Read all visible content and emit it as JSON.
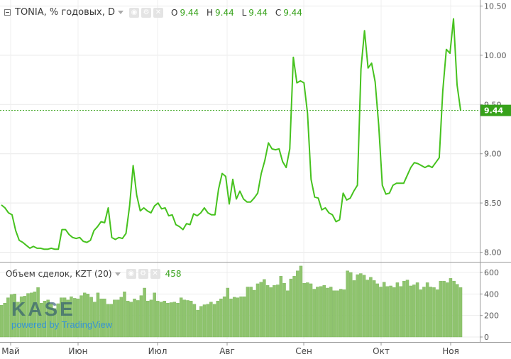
{
  "header": {
    "symbol": "TONIA, % годовых, D",
    "o_label": "O",
    "o": "9.44",
    "h_label": "H",
    "h": "9.44",
    "l_label": "L",
    "l": "9.44",
    "c_label": "C",
    "c": "9.44"
  },
  "volume_header": {
    "label": "Объем сделок, KZT (20)",
    "value": "458"
  },
  "watermark": {
    "brand": "KASE",
    "powered": "powered by TradingView"
  },
  "last_price_label": "9.44",
  "colors": {
    "line": "#46c21e",
    "volume": "#8fc46e",
    "label_bg": "#37a21b"
  },
  "chart_data": [
    {
      "type": "line",
      "name": "TONIA",
      "x_ticks": [
        "Май",
        "Июн",
        "Июл",
        "Авг",
        "Сен",
        "Окт",
        "Ноя"
      ],
      "y_ticks": [
        "8.00",
        "8.50",
        "9.00",
        "9.50",
        "10.00",
        "10.50"
      ],
      "ylim": [
        7.9,
        10.52
      ],
      "last_value": 9.44,
      "values": [
        8.48,
        8.45,
        8.4,
        8.38,
        8.22,
        8.12,
        8.1,
        8.07,
        8.04,
        8.06,
        8.04,
        8.04,
        8.03,
        8.03,
        8.04,
        8.03,
        8.03,
        8.23,
        8.23,
        8.18,
        8.15,
        8.14,
        8.15,
        8.11,
        8.1,
        8.12,
        8.22,
        8.26,
        8.31,
        8.3,
        8.45,
        8.15,
        8.13,
        8.15,
        8.14,
        8.19,
        8.47,
        8.88,
        8.58,
        8.42,
        8.45,
        8.42,
        8.4,
        8.47,
        8.5,
        8.44,
        8.45,
        8.37,
        8.38,
        8.28,
        8.26,
        8.23,
        8.29,
        8.28,
        8.39,
        8.37,
        8.4,
        8.45,
        8.4,
        8.38,
        8.38,
        8.64,
        8.8,
        8.77,
        8.49,
        8.74,
        8.54,
        8.62,
        8.54,
        8.51,
        8.51,
        8.55,
        8.6,
        8.8,
        8.93,
        9.11,
        9.05,
        9.04,
        9.05,
        8.92,
        8.86,
        9.05,
        9.98,
        9.72,
        9.74,
        9.72,
        9.41,
        8.74,
        8.56,
        8.55,
        8.43,
        8.45,
        8.4,
        8.38,
        8.31,
        8.33,
        8.6,
        8.53,
        8.55,
        8.62,
        8.68,
        9.86,
        10.25,
        9.87,
        9.92,
        9.73,
        9.29,
        8.68,
        8.59,
        8.6,
        8.68,
        8.7,
        8.7,
        8.7,
        8.78,
        8.86,
        8.91,
        8.9,
        8.88,
        8.86,
        8.88,
        8.86,
        8.91,
        8.96,
        9.64,
        10.06,
        10.02,
        10.37,
        9.7,
        9.44
      ]
    },
    {
      "type": "bar",
      "name": "Объем сделок, KZT (20)",
      "y_ticks": [
        "0",
        "200",
        "400",
        "600"
      ],
      "ylim": [
        0,
        660
      ],
      "values": [
        295,
        315,
        365,
        395,
        400,
        325,
        375,
        380,
        405,
        410,
        420,
        460,
        315,
        335,
        345,
        310,
        265,
        310,
        365,
        365,
        345,
        375,
        360,
        355,
        385,
        410,
        400,
        370,
        325,
        410,
        355,
        355,
        305,
        305,
        345,
        345,
        370,
        420,
        335,
        325,
        355,
        340,
        385,
        455,
        335,
        345,
        410,
        335,
        325,
        335,
        315,
        320,
        325,
        315,
        365,
        345,
        340,
        335,
        305,
        250,
        285,
        300,
        305,
        325,
        305,
        335,
        355,
        375,
        455,
        355,
        370,
        365,
        375,
        375,
        465,
        465,
        435,
        495,
        510,
        535,
        480,
        460,
        480,
        485,
        565,
        500,
        430,
        540,
        565,
        615,
        660,
        500,
        505,
        495,
        445,
        465,
        470,
        480,
        455,
        465,
        430,
        430,
        445,
        440,
        615,
        600,
        525,
        580,
        590,
        575,
        530,
        555,
        525,
        495,
        465,
        510,
        470,
        475,
        460,
        505,
        470,
        520,
        530,
        475,
        485,
        505,
        440,
        465,
        505,
        465,
        460,
        440,
        520,
        520,
        505,
        545,
        520,
        490,
        460
      ]
    }
  ]
}
